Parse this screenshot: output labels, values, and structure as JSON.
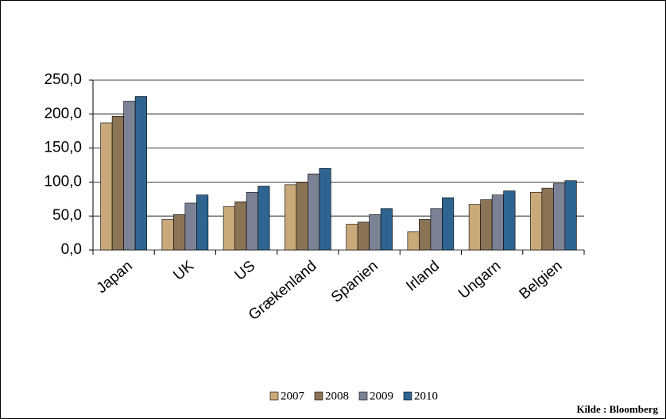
{
  "chart_data": {
    "type": "bar",
    "categories": [
      "Japan",
      "UK",
      "US",
      "Grækenland",
      "Spanien",
      "Irland",
      "Ungarn",
      "Belgien"
    ],
    "series": [
      {
        "name": "2007",
        "color": "#c9a97a",
        "values": [
          187,
          45,
          64,
          96,
          38,
          27,
          67,
          85
        ]
      },
      {
        "name": "2008",
        "color": "#8b7355",
        "values": [
          197,
          52,
          71,
          100,
          41,
          45,
          74,
          91
        ]
      },
      {
        "name": "2009",
        "color": "#7c8296",
        "values": [
          219,
          69,
          85,
          112,
          52,
          61,
          81,
          98
        ]
      },
      {
        "name": "2010",
        "color": "#2f6491",
        "values": [
          226,
          81,
          94,
          120,
          61,
          77,
          87,
          102
        ]
      }
    ],
    "ylim": [
      0,
      250
    ],
    "yticks": [
      {
        "value": 0,
        "label": "0,0"
      },
      {
        "value": 50,
        "label": "50,0"
      },
      {
        "value": 100,
        "label": "100,0"
      },
      {
        "value": 150,
        "label": "150,0"
      },
      {
        "value": 200,
        "label": "200,0"
      },
      {
        "value": 250,
        "label": "250,0"
      }
    ],
    "grid": true,
    "legend": "bottom",
    "source": "Kilde : Bloomberg"
  }
}
